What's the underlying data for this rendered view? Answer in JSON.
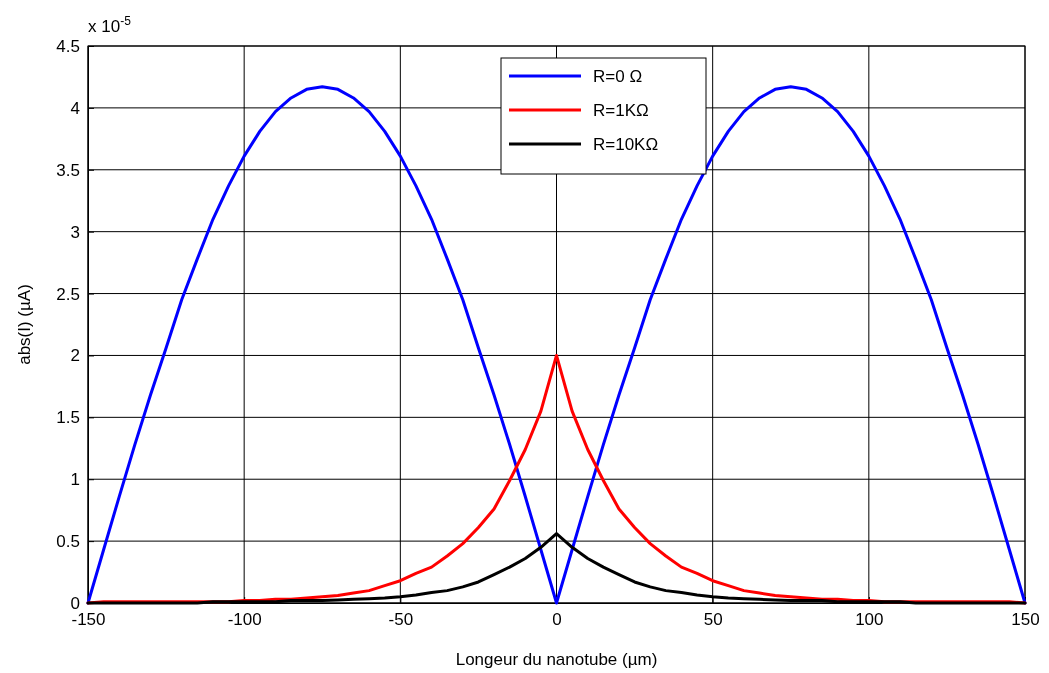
{
  "chart_data": {
    "type": "line",
    "xlabel": "Longeur du nanotube (µm)",
    "ylabel": "abs(I) (µA)",
    "annotations": [
      "x 10$^{-5}$"
    ],
    "x": [
      -150,
      -145,
      -140,
      -135,
      -130,
      -125,
      -120,
      -115,
      -110,
      -105,
      -100,
      -95,
      -90,
      -85,
      -80,
      -75,
      -70,
      -65,
      -60,
      -55,
      -50,
      -45,
      -40,
      -35,
      -30,
      -25,
      -20,
      -15,
      -10,
      -5,
      0,
      5,
      10,
      15,
      20,
      25,
      30,
      35,
      40,
      45,
      50,
      55,
      60,
      65,
      70,
      75,
      80,
      85,
      90,
      95,
      100,
      105,
      110,
      115,
      120,
      125,
      130,
      135,
      140,
      145,
      150
    ],
    "series": [
      {
        "name": "R=0 Ω",
        "color": "#0000ff",
        "values": [
          0,
          0.43,
          0.86,
          1.28,
          1.68,
          2.06,
          2.45,
          2.78,
          3.1,
          3.37,
          3.61,
          3.81,
          3.97,
          4.08,
          4.15,
          4.17,
          4.15,
          4.08,
          3.97,
          3.81,
          3.61,
          3.37,
          3.1,
          2.78,
          2.45,
          2.06,
          1.68,
          1.28,
          0.86,
          0.43,
          0,
          0.43,
          0.86,
          1.28,
          1.68,
          2.06,
          2.45,
          2.78,
          3.1,
          3.37,
          3.61,
          3.81,
          3.97,
          4.08,
          4.15,
          4.17,
          4.15,
          4.08,
          3.97,
          3.81,
          3.61,
          3.37,
          3.1,
          2.78,
          2.45,
          2.06,
          1.68,
          1.28,
          0.86,
          0.43,
          0
        ]
      },
      {
        "name": "R=1KΩ",
        "color": "#ff0000",
        "values": [
          0,
          0.01,
          0.01,
          0.01,
          0.01,
          0.01,
          0.01,
          0.01,
          0.01,
          0.01,
          0.02,
          0.02,
          0.03,
          0.03,
          0.04,
          0.05,
          0.06,
          0.08,
          0.1,
          0.14,
          0.18,
          0.24,
          0.29,
          0.38,
          0.48,
          0.61,
          0.76,
          0.99,
          1.24,
          1.55,
          2.0,
          1.55,
          1.24,
          0.99,
          0.76,
          0.61,
          0.48,
          0.38,
          0.29,
          0.24,
          0.18,
          0.14,
          0.1,
          0.08,
          0.06,
          0.05,
          0.04,
          0.03,
          0.03,
          0.02,
          0.02,
          0.01,
          0.01,
          0.01,
          0.01,
          0.01,
          0.01,
          0.01,
          0.01,
          0.01,
          0
        ]
      },
      {
        "name": "R=10KΩ",
        "color": "#000000",
        "values": [
          0,
          0,
          0,
          0,
          0,
          0,
          0,
          0,
          0.01,
          0.01,
          0.01,
          0.01,
          0.01,
          0.02,
          0.02,
          0.02,
          0.025,
          0.03,
          0.035,
          0.04,
          0.05,
          0.065,
          0.085,
          0.1,
          0.13,
          0.17,
          0.23,
          0.29,
          0.36,
          0.45,
          0.56,
          0.45,
          0.36,
          0.29,
          0.23,
          0.17,
          0.13,
          0.1,
          0.085,
          0.065,
          0.05,
          0.04,
          0.035,
          0.03,
          0.025,
          0.02,
          0.02,
          0.02,
          0.01,
          0.01,
          0.01,
          0.01,
          0.01,
          0,
          0,
          0,
          0,
          0,
          0,
          0,
          0
        ]
      }
    ],
    "xlim": [
      -150,
      150
    ],
    "xticks": [
      -150,
      -100,
      -50,
      0,
      50,
      100,
      150
    ],
    "ylim": [
      0,
      4.5
    ],
    "yticks": [
      0,
      0.5,
      1,
      1.5,
      2,
      2.5,
      3,
      3.5,
      4,
      4.5
    ],
    "grid": true,
    "legend": "top",
    "line_style": "solid"
  }
}
